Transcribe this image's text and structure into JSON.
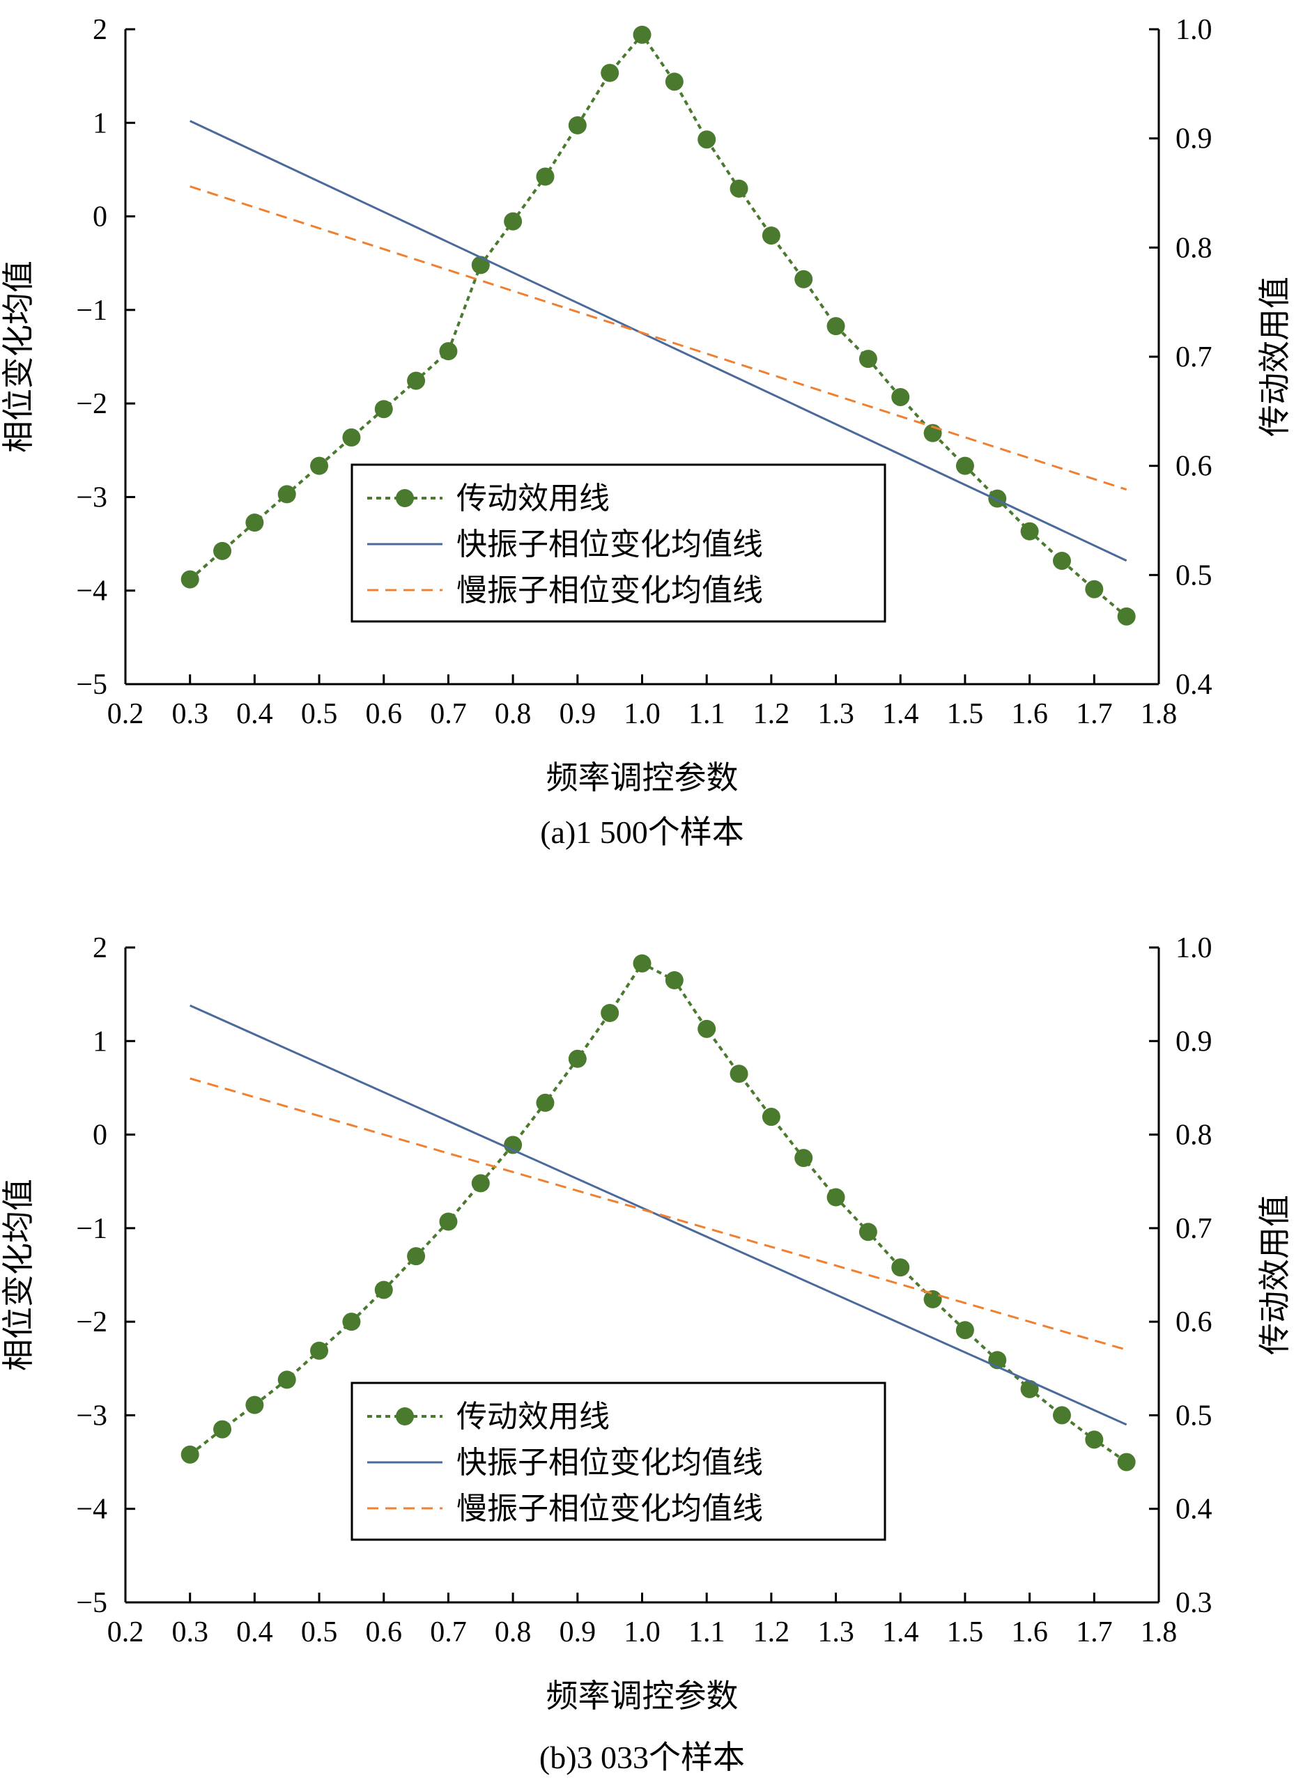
{
  "chart_data": [
    {
      "type": "line",
      "caption": "(a)1 500个样本",
      "xlabel": "频率调控参数",
      "ylabel": "相位变化均值",
      "ylabel_right": "传动效用值",
      "xlim": [
        0.2,
        1.8
      ],
      "ylim": [
        -5,
        2
      ],
      "ylim_right": [
        0.4,
        1.0
      ],
      "x_ticks": [
        "0.2",
        "0.3",
        "0.4",
        "0.5",
        "0.6",
        "0.7",
        "0.8",
        "0.9",
        "1.0",
        "1.1",
        "1.2",
        "1.3",
        "1.4",
        "1.5",
        "1.6",
        "1.7",
        "1.8"
      ],
      "y_ticks": [
        "2",
        "1",
        "0",
        "−1",
        "−2",
        "−3",
        "−4",
        "−5"
      ],
      "y_right_ticks": [
        "1.0",
        "0.9",
        "0.8",
        "0.7",
        "0.6",
        "0.5",
        "0.4"
      ],
      "legend_position": "center",
      "series": [
        {
          "name": "传动效用线",
          "axis": "right",
          "color": "#4a7a2e",
          "style": "dotted-markers",
          "x": [
            0.3,
            0.35,
            0.4,
            0.45,
            0.5,
            0.55,
            0.6,
            0.65,
            0.7,
            0.75,
            0.8,
            0.85,
            0.9,
            0.95,
            1.0,
            1.05,
            1.1,
            1.15,
            1.2,
            1.25,
            1.3,
            1.35,
            1.4,
            1.45,
            1.5,
            1.55,
            1.6,
            1.65,
            1.7,
            1.75
          ],
          "values": [
            0.496,
            0.522,
            0.548,
            0.574,
            0.6,
            0.626,
            0.652,
            0.678,
            0.705,
            0.784,
            0.824,
            0.865,
            0.912,
            0.96,
            0.995,
            0.952,
            0.899,
            0.854,
            0.811,
            0.771,
            0.728,
            0.698,
            0.663,
            0.63,
            0.6,
            0.57,
            0.54,
            0.513,
            0.487,
            0.462
          ]
        },
        {
          "name": "快振子相位变化均值线",
          "axis": "left",
          "color": "#4a6a9c",
          "style": "solid",
          "x": [
            0.3,
            1.75
          ],
          "values": [
            1.02,
            -3.68
          ]
        },
        {
          "name": "慢振子相位变化均值线",
          "axis": "left",
          "color": "#f08030",
          "style": "dashed",
          "x": [
            0.3,
            1.75
          ],
          "values": [
            0.32,
            -2.92
          ]
        }
      ]
    },
    {
      "type": "line",
      "caption": "(b)3 033个样本",
      "xlabel": "频率调控参数",
      "ylabel": "相位变化均值",
      "ylabel_right": "传动效用值",
      "xlim": [
        0.2,
        1.8
      ],
      "ylim": [
        -5,
        2
      ],
      "ylim_right": [
        0.3,
        1.0
      ],
      "x_ticks": [
        "0.2",
        "0.3",
        "0.4",
        "0.5",
        "0.6",
        "0.7",
        "0.8",
        "0.9",
        "1.0",
        "1.1",
        "1.2",
        "1.3",
        "1.4",
        "1.5",
        "1.6",
        "1.7",
        "1.8"
      ],
      "y_ticks": [
        "2",
        "1",
        "0",
        "−1",
        "−2",
        "−3",
        "−4",
        "−5"
      ],
      "y_right_ticks": [
        "1.0",
        "0.9",
        "0.8",
        "0.7",
        "0.6",
        "0.5",
        "0.4",
        "0.3"
      ],
      "legend_position": "center",
      "series": [
        {
          "name": "传动效用线",
          "axis": "right",
          "color": "#4a7a2e",
          "style": "dotted-markers",
          "x": [
            0.3,
            0.35,
            0.4,
            0.45,
            0.5,
            0.55,
            0.6,
            0.65,
            0.7,
            0.75,
            0.8,
            0.85,
            0.9,
            0.95,
            1.0,
            1.05,
            1.1,
            1.15,
            1.2,
            1.25,
            1.3,
            1.35,
            1.4,
            1.45,
            1.5,
            1.55,
            1.6,
            1.65,
            1.7,
            1.75
          ],
          "values": [
            0.458,
            0.485,
            0.511,
            0.538,
            0.569,
            0.6,
            0.634,
            0.67,
            0.707,
            0.748,
            0.789,
            0.834,
            0.881,
            0.93,
            0.983,
            0.965,
            0.913,
            0.865,
            0.819,
            0.775,
            0.733,
            0.696,
            0.658,
            0.624,
            0.591,
            0.559,
            0.528,
            0.5,
            0.474,
            0.45
          ]
        },
        {
          "name": "快振子相位变化均值线",
          "axis": "left",
          "color": "#4a6a9c",
          "style": "solid",
          "x": [
            0.3,
            1.75
          ],
          "values": [
            1.38,
            -3.1
          ]
        },
        {
          "name": "慢振子相位变化均值线",
          "axis": "left",
          "color": "#f08030",
          "style": "dashed",
          "x": [
            0.3,
            1.75
          ],
          "values": [
            0.6,
            -2.3
          ]
        }
      ]
    }
  ]
}
